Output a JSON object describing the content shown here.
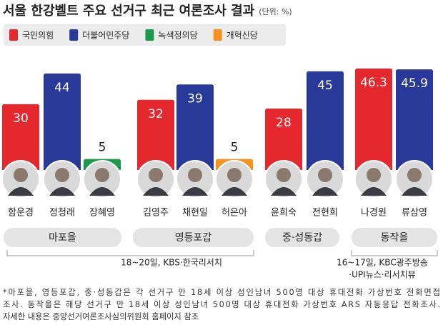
{
  "chart_data": {
    "type": "bar",
    "title": "서울 한강벨트 주요 선거구 최근 여론조사 결과",
    "unit": "(단위: %)",
    "legend": [
      {
        "name": "국민의힘",
        "color": "#e5282d"
      },
      {
        "name": "더불어민주당",
        "color": "#28399a"
      },
      {
        "name": "녹색정의당",
        "color": "#1a9a4a"
      },
      {
        "name": "개혁신당",
        "color": "#f6921e"
      }
    ],
    "groups": [
      {
        "name": "마포을",
        "categories": [
          "함운경",
          "정청래",
          "장혜영"
        ],
        "values": [
          30,
          44,
          5
        ],
        "colors": [
          "#e5282d",
          "#28399a",
          "#1a9a4a"
        ]
      },
      {
        "name": "영등포갑",
        "categories": [
          "김영주",
          "채현일",
          "허은아"
        ],
        "values": [
          32,
          39,
          5
        ],
        "colors": [
          "#e5282d",
          "#28399a",
          "#f6921e"
        ]
      },
      {
        "name": "중·성동갑",
        "categories": [
          "윤희숙",
          "전현희"
        ],
        "values": [
          28,
          45
        ],
        "colors": [
          "#e5282d",
          "#28399a"
        ]
      },
      {
        "name": "동작을",
        "categories": [
          "나경원",
          "류삼영"
        ],
        "values": [
          46.3,
          45.9
        ],
        "colors": [
          "#e5282d",
          "#28399a"
        ]
      }
    ],
    "sources": [
      [
        "18~20일, KBS·한국리서치"
      ],
      [
        "16~17일, KBC광주방송",
        "·UPI뉴스·리서치뷰"
      ]
    ],
    "footnote": [
      "*마포을, 영등포갑, 중·성동갑은 각 선거구 만 18세 이상 성인남녀 500명 대상 휴대전화 가상번호 전화면접",
      "조사. 동작을은 해당 선거구 만 18세 이상 성인남녀 500명 대상  휴대전화 가상번호 ARS 자동응답 전화조사.",
      "자세한 내용은 중앙선거여론조사심의위원회 홈페이지 참조"
    ]
  }
}
